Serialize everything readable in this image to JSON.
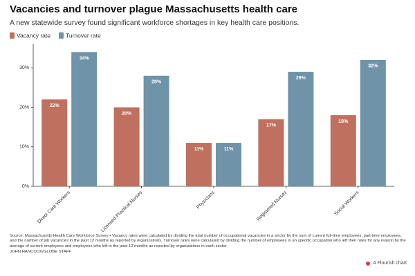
{
  "chart_data": {
    "type": "bar",
    "title": "Vacancies and turnover plague Massachusetts health care",
    "subtitle": "A new statewide survey found significant workforce shortages in key health care positions.",
    "categories": [
      "Direct Care Workers",
      "Licensed Practical Nurses",
      "Physicians",
      "Registered Nurses",
      "Social Workers"
    ],
    "series": [
      {
        "name": "Vacancy rate",
        "color": "#c0705f",
        "values": [
          22,
          20,
          11,
          17,
          18
        ],
        "value_labels": [
          "22%",
          "20%",
          "11%",
          "17%",
          "18%"
        ]
      },
      {
        "name": "Turnover rate",
        "color": "#6f93a8",
        "values": [
          34,
          28,
          11,
          29,
          32
        ],
        "value_labels": [
          "34%",
          "28%",
          "11%",
          "29%",
          "32%"
        ]
      }
    ],
    "ylim": [
      0,
      36
    ],
    "yticks": [
      {
        "value": 0,
        "label": "0%"
      },
      {
        "value": 10,
        "label": "10%"
      },
      {
        "value": 20,
        "label": "20%"
      },
      {
        "value": 30,
        "label": "30%"
      }
    ],
    "grid": false
  },
  "footer": {
    "source": "Source: Massachusetts Health Care Workforce Survey • Vacancy rates were calculated by dividing the total number of occupational vacancies in a sector by the sum of current full-time employees, part-time employees, and the number of job vacancies in the past 12 months as reported by organizations. Turnover rates were calculated by dividing the number of employees in an specific occupation who left their roles for any reason by the average of current employees and employees who left in the past 12 months as reported by organizations in each sector.",
    "credit": "JOHN HANCOCK/GLOBE STAFF",
    "branding": "A Flourish chart"
  }
}
